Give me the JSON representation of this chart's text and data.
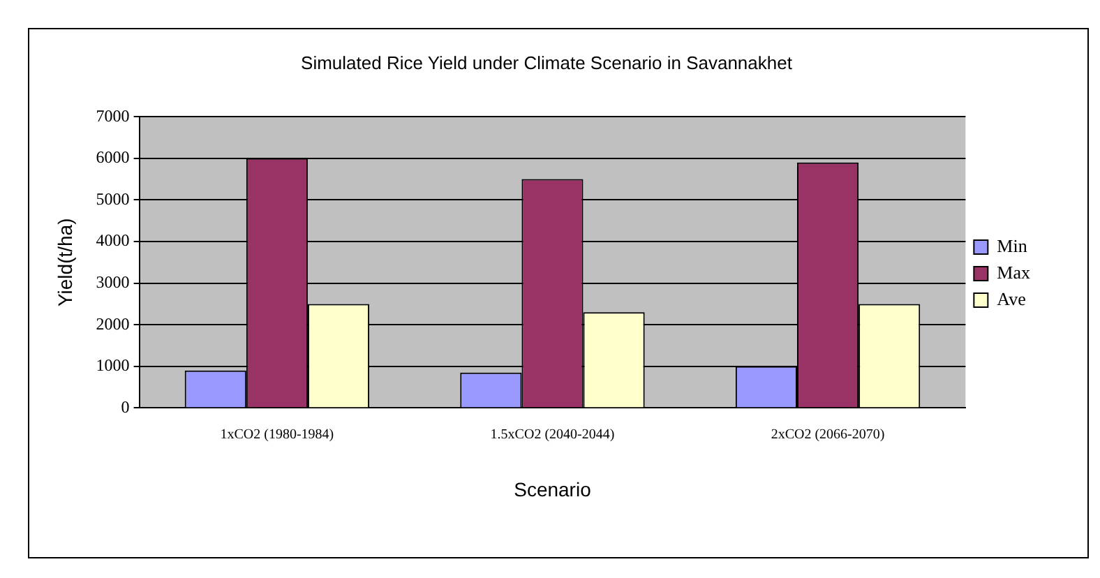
{
  "chart_data": {
    "type": "bar",
    "title": "Simulated Rice Yield under Climate Scenario in Savannakhet",
    "xlabel": "Scenario",
    "ylabel": "Yield(t/ha)",
    "categories": [
      "1xCO2 (1980-1984)",
      "1.5xCO2 (2040-2044)",
      "2xCO2 (2066-2070)"
    ],
    "series": [
      {
        "name": "Min",
        "color": "#9999ff",
        "values": [
          900,
          850,
          1000
        ]
      },
      {
        "name": "Max",
        "color": "#993366",
        "values": [
          6000,
          5500,
          5900
        ]
      },
      {
        "name": "Ave",
        "color": "#ffffcc",
        "values": [
          2500,
          2300,
          2500
        ]
      }
    ],
    "ylim": [
      0,
      7000
    ],
    "yticks": [
      0,
      1000,
      2000,
      3000,
      4000,
      5000,
      6000,
      7000
    ],
    "grid": "y",
    "legend": "right"
  }
}
